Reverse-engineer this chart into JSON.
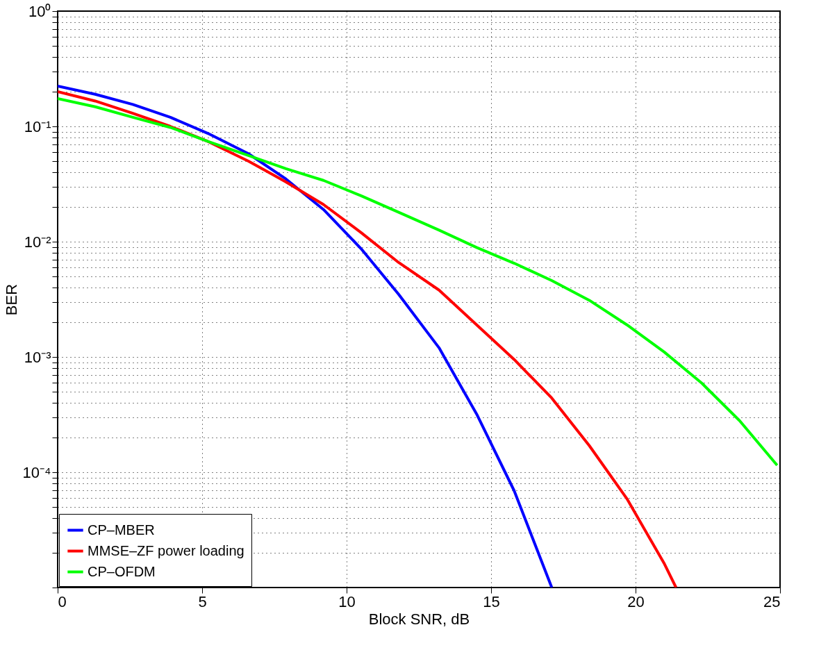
{
  "chart_data": {
    "type": "line",
    "xlabel": "Block SNR, dB",
    "ylabel": "BER",
    "log": "y",
    "grid": true,
    "legend": "bottom left",
    "line_style": "solid",
    "marker": "none",
    "xlim": [
      0,
      25
    ],
    "xticks": [
      0,
      5,
      10,
      15,
      20,
      25
    ],
    "ylim": [
      1e-05,
      1
    ],
    "yticks": [
      {
        "value": 1,
        "label": "10⁰"
      },
      {
        "value": 0.1,
        "label": "10⁻¹"
      },
      {
        "value": 0.01,
        "label": "10⁻²"
      },
      {
        "value": 0.001,
        "label": "10⁻³"
      },
      {
        "value": 0.0001,
        "label": "10⁻⁴"
      },
      {
        "value": 1e-05,
        "label": null
      },
      {
        "value": 0.9,
        "label": null
      },
      {
        "value": 0.8,
        "label": null
      },
      {
        "value": 0.7,
        "label": null
      },
      {
        "value": 0.6,
        "label": null
      },
      {
        "value": 0.5,
        "label": null
      },
      {
        "value": 0.4,
        "label": null
      },
      {
        "value": 0.3,
        "label": null
      },
      {
        "value": 0.2,
        "label": null
      },
      {
        "value": 0.09,
        "label": null
      },
      {
        "value": 0.08,
        "label": null
      },
      {
        "value": 0.07,
        "label": null
      },
      {
        "value": 0.06,
        "label": null
      },
      {
        "value": 0.05,
        "label": null
      },
      {
        "value": 0.04,
        "label": null
      },
      {
        "value": 0.03,
        "label": null
      },
      {
        "value": 0.02,
        "label": null
      },
      {
        "value": 0.009,
        "label": null
      },
      {
        "value": 0.008,
        "label": null
      },
      {
        "value": 0.007,
        "label": null
      },
      {
        "value": 0.006,
        "label": null
      },
      {
        "value": 0.005,
        "label": null
      },
      {
        "value": 0.004,
        "label": null
      },
      {
        "value": 0.003,
        "label": null
      },
      {
        "value": 0.002,
        "label": null
      },
      {
        "value": 0.0009,
        "label": null
      },
      {
        "value": 0.0008,
        "label": null
      },
      {
        "value": 0.0007,
        "label": null
      },
      {
        "value": 0.0006,
        "label": null
      },
      {
        "value": 0.0005,
        "label": null
      },
      {
        "value": 0.0004,
        "label": null
      },
      {
        "value": 0.0003,
        "label": null
      },
      {
        "value": 0.0002,
        "label": null
      },
      {
        "value": 9e-05,
        "label": null
      },
      {
        "value": 8e-05,
        "label": null
      },
      {
        "value": 7e-05,
        "label": null
      },
      {
        "value": 6e-05,
        "label": null
      },
      {
        "value": 5e-05,
        "label": null
      },
      {
        "value": 4e-05,
        "label": null
      },
      {
        "value": 3e-05,
        "label": null
      },
      {
        "value": 2e-05,
        "label": null
      }
    ],
    "series": [
      {
        "name": "CP–MBER",
        "color": "#0000ff",
        "x": [
          0,
          1.3,
          2.6,
          3.9,
          5.2,
          6.6,
          7.9,
          9.2,
          10.5,
          11.8,
          13.2,
          14.5,
          15.8,
          17.1
        ],
        "values": [
          0.224,
          0.19,
          0.155,
          0.12,
          0.087,
          0.058,
          0.035,
          0.019,
          0.0087,
          0.0035,
          0.0012,
          0.00032,
          6.9e-05,
          1e-05
        ]
      },
      {
        "name": "MMSE–ZF power loading",
        "color": "#ff0000",
        "x": [
          0,
          1.3,
          2.6,
          3.9,
          5.2,
          6.6,
          7.9,
          9.2,
          10.5,
          11.8,
          13.2,
          14.5,
          15.8,
          17.1,
          18.4,
          19.7,
          21.0,
          21.4
        ],
        "values": [
          0.2,
          0.166,
          0.13,
          0.1,
          0.074,
          0.05,
          0.033,
          0.021,
          0.012,
          0.0066,
          0.0038,
          0.0019,
          0.00095,
          0.00044,
          0.00017,
          5.9e-05,
          1.6e-05,
          1e-05
        ]
      },
      {
        "name": "CP–OFDM",
        "color": "#00ff00",
        "x": [
          0,
          1.3,
          2.6,
          3.9,
          5.2,
          6.6,
          7.9,
          9.2,
          10.5,
          11.8,
          13.2,
          14.5,
          15.8,
          17.1,
          18.4,
          19.7,
          21.0,
          22.3,
          23.6,
          24.9
        ],
        "values": [
          0.174,
          0.148,
          0.12,
          0.098,
          0.074,
          0.056,
          0.043,
          0.034,
          0.025,
          0.018,
          0.0126,
          0.0089,
          0.0065,
          0.0046,
          0.0031,
          0.0019,
          0.0011,
          0.00059,
          0.00028,
          0.000115
        ]
      }
    ]
  }
}
